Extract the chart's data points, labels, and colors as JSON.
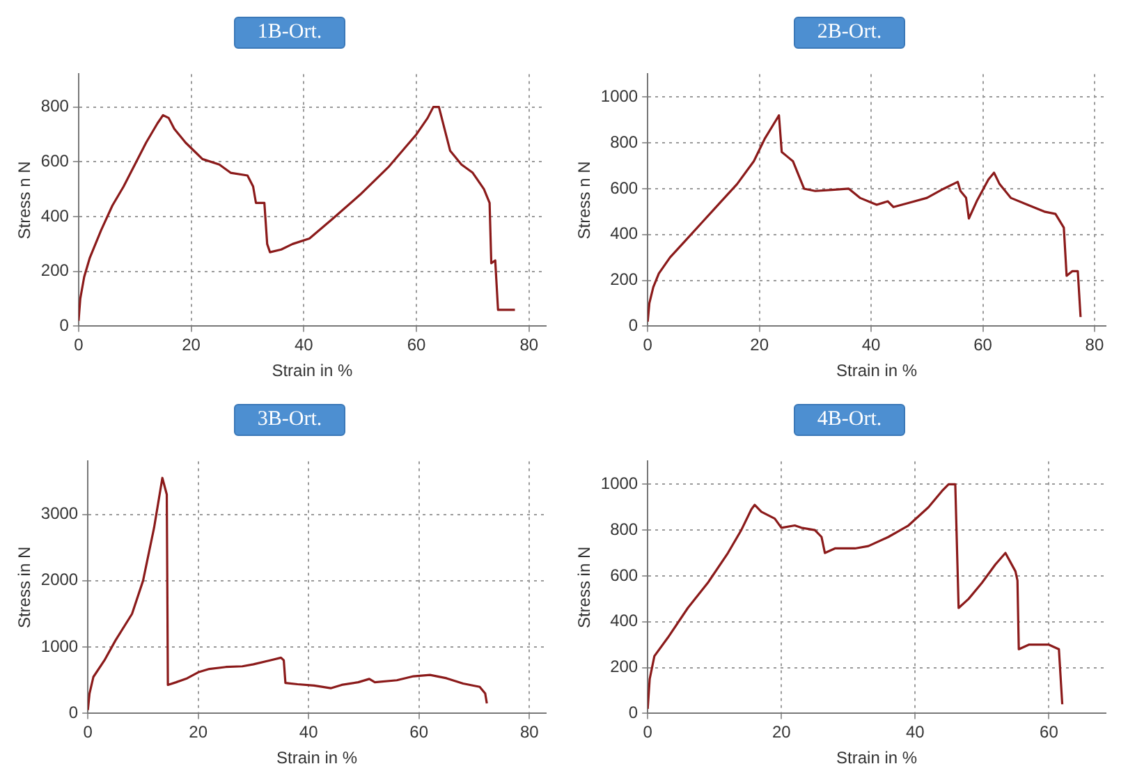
{
  "chart_data": [
    {
      "type": "line",
      "title": "1B-Ort.",
      "xlabel": "Strain in %",
      "ylabel": "Stress n N",
      "color": "#8b1a1a",
      "marker": "none",
      "grid": true,
      "xlim": [
        0,
        83
      ],
      "ylim": [
        0,
        920
      ],
      "xticks": [
        0,
        20,
        40,
        60,
        80
      ],
      "yticks": [
        0,
        200,
        400,
        600,
        800
      ],
      "x": [
        0,
        0.3,
        1,
        2,
        4,
        6,
        8,
        10,
        12,
        14,
        15,
        16,
        17,
        19,
        21,
        22,
        25,
        27,
        30,
        31,
        31.5,
        33,
        33.5,
        34,
        36,
        38,
        41,
        45,
        50,
        55,
        60,
        62,
        63,
        64,
        65,
        66,
        68,
        70,
        72,
        73,
        73.3,
        74,
        74.5,
        77.5
      ],
      "values": [
        20,
        100,
        180,
        250,
        350,
        440,
        510,
        590,
        670,
        740,
        770,
        760,
        720,
        670,
        630,
        610,
        590,
        560,
        550,
        510,
        450,
        450,
        300,
        270,
        280,
        300,
        320,
        390,
        480,
        580,
        700,
        760,
        800,
        800,
        720,
        640,
        590,
        560,
        500,
        450,
        230,
        240,
        60,
        60
      ]
    },
    {
      "type": "line",
      "title": "2B-Ort.",
      "xlabel": "Strain in %",
      "ylabel": "Stress n N",
      "color": "#8b1a1a",
      "marker": "none",
      "grid": true,
      "xlim": [
        0,
        82
      ],
      "ylim": [
        0,
        1100
      ],
      "xticks": [
        0,
        20,
        40,
        60,
        80
      ],
      "yticks": [
        0,
        200,
        400,
        600,
        800,
        1000
      ],
      "x": [
        0,
        0.3,
        1,
        2,
        4,
        7,
        10,
        13,
        16,
        19,
        21,
        23,
        23.5,
        24,
        25,
        26,
        27,
        28,
        30,
        33,
        36,
        38,
        40,
        41,
        43,
        44,
        47,
        50,
        53,
        55.5,
        56,
        57,
        57.5,
        59,
        61,
        62,
        63,
        65,
        68,
        71,
        73,
        74.5,
        75,
        76,
        77,
        77.5
      ],
      "values": [
        20,
        100,
        170,
        230,
        300,
        380,
        460,
        540,
        620,
        720,
        820,
        900,
        920,
        760,
        740,
        720,
        660,
        600,
        590,
        595,
        600,
        560,
        540,
        530,
        545,
        520,
        540,
        560,
        600,
        630,
        590,
        560,
        470,
        550,
        640,
        670,
        620,
        560,
        530,
        500,
        490,
        430,
        220,
        240,
        240,
        40
      ]
    },
    {
      "type": "line",
      "title": "3B-Ort.",
      "xlabel": "Strain in %",
      "ylabel": "Stress in N",
      "color": "#8b1a1a",
      "marker": "none",
      "grid": true,
      "xlim": [
        0,
        83
      ],
      "ylim": [
        0,
        3800
      ],
      "xticks": [
        0,
        20,
        40,
        60,
        80
      ],
      "yticks": [
        0,
        1000,
        2000,
        3000
      ],
      "x": [
        0,
        0.3,
        1,
        3,
        5,
        8,
        10,
        12,
        13.5,
        14.3,
        14.5,
        16,
        18,
        20,
        22,
        25,
        28,
        30,
        33,
        35,
        35.5,
        35.8,
        38,
        41,
        44,
        46,
        49,
        51,
        52,
        56,
        59,
        62,
        65,
        68,
        71,
        72,
        72.3
      ],
      "values": [
        50,
        300,
        550,
        800,
        1100,
        1500,
        2000,
        2800,
        3550,
        3300,
        430,
        470,
        530,
        620,
        670,
        700,
        710,
        740,
        800,
        840,
        800,
        460,
        440,
        420,
        380,
        430,
        470,
        520,
        470,
        500,
        560,
        580,
        530,
        450,
        400,
        300,
        150
      ]
    },
    {
      "type": "line",
      "title": "4B-Ort.",
      "xlabel": "Strain in %",
      "ylabel": "Stress in N",
      "color": "#8b1a1a",
      "marker": "none",
      "grid": true,
      "xlim": [
        0,
        68.5
      ],
      "ylim": [
        0,
        1100
      ],
      "xticks": [
        0,
        20,
        40,
        60
      ],
      "yticks": [
        0,
        200,
        400,
        600,
        800,
        1000
      ],
      "x": [
        0,
        0.3,
        1,
        3,
        6,
        9,
        12,
        14,
        15.5,
        16,
        17,
        19,
        20,
        22,
        23,
        25,
        26,
        26.5,
        28,
        31,
        33,
        36,
        39,
        42,
        44,
        45,
        46,
        46.5,
        48,
        50,
        52,
        53.5,
        55,
        55.3,
        55.5,
        57,
        60,
        61.5,
        62
      ],
      "values": [
        20,
        150,
        250,
        330,
        460,
        570,
        700,
        800,
        890,
        910,
        880,
        850,
        810,
        820,
        810,
        800,
        770,
        700,
        720,
        720,
        730,
        770,
        820,
        900,
        970,
        1000,
        1000,
        460,
        500,
        570,
        650,
        700,
        620,
        580,
        280,
        300,
        300,
        280,
        40
      ]
    }
  ]
}
